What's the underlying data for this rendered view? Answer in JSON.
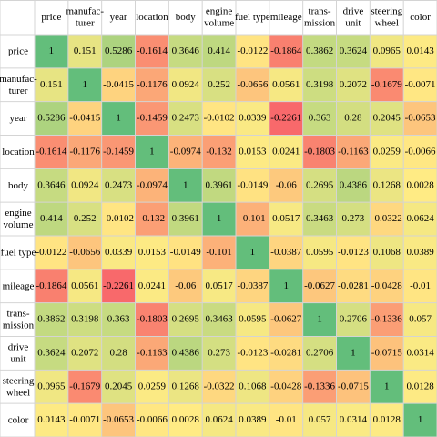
{
  "chart_data": {
    "type": "heatmap",
    "title": "",
    "variables": [
      {
        "id": "price",
        "col_label": [
          "price"
        ],
        "row_label": [
          "price"
        ]
      },
      {
        "id": "manufacturer",
        "col_label": [
          "manufac-",
          "turer"
        ],
        "row_label": [
          "manufac-",
          "turer"
        ]
      },
      {
        "id": "year",
        "col_label": [
          "year"
        ],
        "row_label": [
          "year"
        ]
      },
      {
        "id": "location",
        "col_label": [
          "location"
        ],
        "row_label": [
          "location"
        ]
      },
      {
        "id": "body",
        "col_label": [
          "body"
        ],
        "row_label": [
          "body"
        ]
      },
      {
        "id": "engine-volume",
        "col_label": [
          "engine",
          "volume"
        ],
        "row_label": [
          "engine",
          "volume"
        ]
      },
      {
        "id": "fuel-type",
        "col_label": [
          "fuel type"
        ],
        "row_label": [
          "fuel type"
        ]
      },
      {
        "id": "mileage",
        "col_label": [
          "mileage"
        ],
        "row_label": [
          "mileage"
        ]
      },
      {
        "id": "transmission",
        "col_label": [
          "trans-",
          "mission"
        ],
        "row_label": [
          "trans-",
          "mission"
        ]
      },
      {
        "id": "drive-unit",
        "col_label": [
          "drive",
          "unit"
        ],
        "row_label": [
          "drive",
          "unit"
        ]
      },
      {
        "id": "steering-wheel",
        "col_label": [
          "steering",
          "wheel"
        ],
        "row_label": [
          "steering",
          "wheel"
        ]
      },
      {
        "id": "color",
        "col_label": [
          "color"
        ],
        "row_label": [
          "color"
        ]
      }
    ],
    "matrix": [
      [
        "1",
        "0.151",
        "0.5286",
        "-0.1614",
        "0.3646",
        "0.414",
        "-0.0122",
        "-0.1864",
        "0.3862",
        "0.3624",
        "0.0965",
        "0.0143"
      ],
      [
        "0.151",
        "1",
        "-0.0415",
        "-0.1176",
        "0.0924",
        "0.252",
        "-0.0656",
        "0.0561",
        "0.3198",
        "0.2072",
        "-0.1679",
        "-0.0071"
      ],
      [
        "0.5286",
        "-0.0415",
        "1",
        "-0.1459",
        "0.2473",
        "-0.0102",
        "0.0339",
        "-0.2261",
        "0.363",
        "0.28",
        "0.2045",
        "-0.0653"
      ],
      [
        "-0.1614",
        "-0.1176",
        "-0.1459",
        "1",
        "-0.0974",
        "-0.132",
        "0.0153",
        "0.0241",
        "-0.1803",
        "-0.1163",
        "0.0259",
        "-0.0066"
      ],
      [
        "0.3646",
        "0.0924",
        "0.2473",
        "-0.0974",
        "1",
        "0.3961",
        "-0.0149",
        "-0.06",
        "0.2695",
        "0.4386",
        "0.1268",
        "0.0028"
      ],
      [
        "0.414",
        "0.252",
        "-0.0102",
        "-0.132",
        "0.3961",
        "1",
        "-0.101",
        "0.0517",
        "0.3463",
        "0.273",
        "-0.0322",
        "0.0624"
      ],
      [
        "-0.0122",
        "-0.0656",
        "0.0339",
        "0.0153",
        "-0.0149",
        "-0.101",
        "1",
        "-0.0387",
        "0.0595",
        "-0.0123",
        "0.1068",
        "0.0389"
      ],
      [
        "-0.1864",
        "0.0561",
        "-0.2261",
        "0.0241",
        "-0.06",
        "0.0517",
        "-0.0387",
        "1",
        "-0.0627",
        "-0.0281",
        "-0.0428",
        "-0.01"
      ],
      [
        "0.3862",
        "0.3198",
        "0.363",
        "-0.1803",
        "0.2695",
        "0.3463",
        "0.0595",
        "-0.0627",
        "1",
        "0.2706",
        "-0.1336",
        "0.057"
      ],
      [
        "0.3624",
        "0.2072",
        "0.28",
        "-0.1163",
        "0.4386",
        "0.273",
        "-0.0123",
        "-0.0281",
        "0.2706",
        "1",
        "-0.0715",
        "0.0314"
      ],
      [
        "0.0965",
        "-0.1679",
        "0.2045",
        "0.0259",
        "0.1268",
        "-0.0322",
        "0.1068",
        "-0.0428",
        "-0.1336",
        "-0.0715",
        "1",
        "0.0128"
      ],
      [
        "0.0143",
        "-0.0071",
        "-0.0653",
        "-0.0066",
        "0.0028",
        "0.0624",
        "0.0389",
        "-0.01",
        "0.057",
        "0.0314",
        "0.0128",
        "1"
      ]
    ],
    "color_scale": {
      "low_value": -0.2261,
      "mid_value": 0.0,
      "high_value": 1.0,
      "low_color": "#f8696b",
      "mid_color": "#ffeb84",
      "high_color": "#63be7b"
    },
    "grid": true,
    "grid_color": "#d4d4d4"
  }
}
